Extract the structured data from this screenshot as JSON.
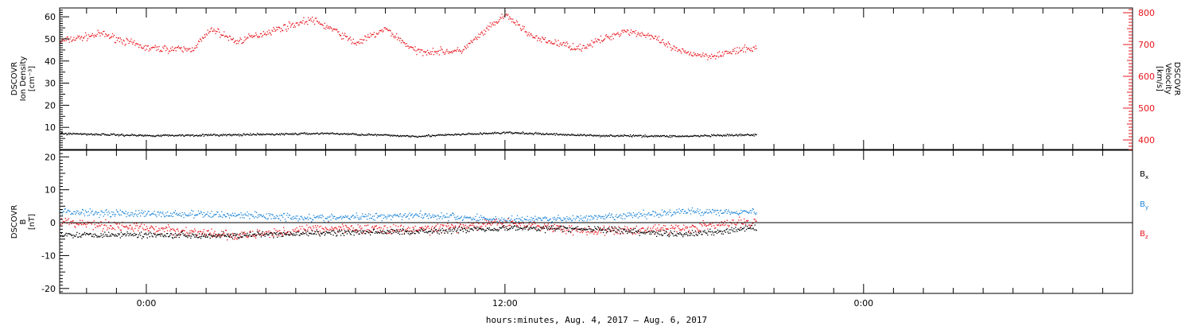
{
  "chart_data": [
    {
      "type": "scatter",
      "panel": "top",
      "left_axis_label": [
        "DSCOVR",
        "Ion Density",
        "[cm⁻³]"
      ],
      "right_axis_label": [
        "DSCOVR",
        "Velocity",
        "[km/s]"
      ],
      "left_ylim": [
        0,
        64
      ],
      "right_ylim": [
        370,
        815
      ],
      "left_ticks": [
        10,
        20,
        30,
        40,
        50,
        60
      ],
      "right_ticks": [
        400,
        500,
        600,
        700,
        800
      ],
      "series": [
        {
          "name": "Ion Density",
          "axis": "left",
          "color": "#000000",
          "x": [
            -3.0,
            0.0,
            3.0,
            6.0,
            9.0,
            12.0,
            15.0,
            18.0,
            20.3
          ],
          "values": [
            7.5,
            6.5,
            6.8,
            7.5,
            6.2,
            7.8,
            6.5,
            6.2,
            6.8
          ]
        },
        {
          "name": "Velocity",
          "axis": "right",
          "color": "#e8141c",
          "x": [
            -3.0,
            -1.5,
            0.0,
            1.5,
            2.2,
            3.0,
            4.2,
            5.5,
            6.2,
            7.0,
            8.0,
            9.0,
            10.5,
            12.0,
            13.0,
            14.5,
            16.0,
            16.8,
            17.8,
            18.8,
            20.3
          ],
          "values": [
            710,
            735,
            690,
            685,
            750,
            710,
            745,
            780,
            750,
            705,
            750,
            680,
            680,
            795,
            720,
            690,
            745,
            730,
            680,
            665,
            690
          ]
        }
      ]
    },
    {
      "type": "scatter",
      "panel": "bottom",
      "left_axis_label": [
        "DSCOVR",
        "B",
        "[nT]"
      ],
      "left_ylim": [
        -21.5,
        22
      ],
      "left_ticks": [
        -20,
        -10,
        0,
        10,
        20
      ],
      "series": [
        {
          "name": "Bx",
          "color": "#000000",
          "x": [
            -3.0,
            0.0,
            3.0,
            6.0,
            9.0,
            12.0,
            15.0,
            18.0,
            20.3
          ],
          "values": [
            -3.5,
            -3.5,
            -3.8,
            -3.0,
            -2.5,
            -1.5,
            -1.8,
            -3.5,
            -1.5
          ]
        },
        {
          "name": "By",
          "color": "#1e86d8",
          "x": [
            -3.0,
            0.0,
            3.0,
            6.0,
            9.0,
            12.0,
            15.0,
            18.0,
            20.3
          ],
          "values": [
            3.5,
            2.8,
            2.5,
            1.5,
            2.5,
            1.0,
            1.5,
            3.5,
            3.5
          ]
        },
        {
          "name": "Bz",
          "color": "#e8141c",
          "x": [
            -3.0,
            0.0,
            3.0,
            6.0,
            9.0,
            12.0,
            15.0,
            18.0,
            20.3
          ],
          "values": [
            0.5,
            -1.5,
            -4.0,
            -1.5,
            -2.0,
            0.0,
            -2.5,
            -1.5,
            0.5
          ]
        }
      ],
      "legend": [
        {
          "main": "B",
          "sub": "x",
          "color": "#000000"
        },
        {
          "main": "B",
          "sub": "y",
          "color": "#1e86d8"
        },
        {
          "main": "B",
          "sub": "z",
          "color": "#e8141c"
        }
      ],
      "legend_position": "right"
    }
  ],
  "x_axis": {
    "range_hours": [
      -2.9,
      33.0
    ],
    "major_tick_labels": [
      {
        "hour": 0,
        "label": "0:00"
      },
      {
        "hour": 12,
        "label": "12:00"
      },
      {
        "hour": 24,
        "label": "0:00"
      }
    ],
    "minor_tick_step_hours": 1,
    "caption": "hours:minutes, Aug. 4, 2017 – Aug. 6, 2017"
  },
  "data_end_hour": 20.4
}
